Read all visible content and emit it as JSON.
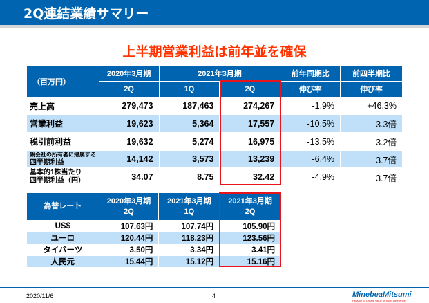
{
  "header": {
    "title": "2Q連結業績サマリー"
  },
  "subtitle": "上半期営業利益は前年並を確保",
  "results_table": {
    "unit": "（百万円）",
    "period_prev": "2020年3月期",
    "period_curr": "2021年3月期",
    "q_prev_2q": "2Q",
    "q_curr_1q": "1Q",
    "q_curr_2q": "2Q",
    "yoy_h1": "前年同期比",
    "yoy_h2": "伸び率",
    "qoq_h1": "前四半期比",
    "qoq_h2": "伸び率",
    "rows": [
      {
        "label": "売上高",
        "label2": "",
        "prev2q": "279,473",
        "q1": "187,463",
        "q2": "274,267",
        "yoy": "-1.9%",
        "qoq": "+46.3%"
      },
      {
        "label": "営業利益",
        "label2": "",
        "prev2q": "19,623",
        "q1": "5,364",
        "q2": "17,557",
        "yoy": "-10.5%",
        "qoq": "3.3倍"
      },
      {
        "label": "税引前利益",
        "label2": "",
        "prev2q": "19,632",
        "q1": "5,274",
        "q2": "16,975",
        "yoy": "-13.5%",
        "qoq": "3.2倍"
      },
      {
        "label": "親会社の所有者に帰属する",
        "label2": "四半期利益",
        "prev2q": "14,142",
        "q1": "3,573",
        "q2": "13,239",
        "yoy": "-6.4%",
        "qoq": "3.7倍"
      },
      {
        "label": "基本的1株当たり",
        "label2": "四半期利益（円）",
        "prev2q": "34.07",
        "q1": "8.75",
        "q2": "32.42",
        "yoy": "-4.9%",
        "qoq": "3.7倍"
      }
    ]
  },
  "fx_table": {
    "header": "為替レート",
    "col1": [
      "2020年3月期",
      "2Q"
    ],
    "col2": [
      "2021年3月期",
      "1Q"
    ],
    "col3": [
      "2021年3月期",
      "2Q"
    ],
    "rows": [
      {
        "label": "US$",
        "v1": "107.63円",
        "v2": "107.74円",
        "v3": "105.90円"
      },
      {
        "label": "ユーロ",
        "v1": "120.44円",
        "v2": "118.23円",
        "v3": "123.56円"
      },
      {
        "label": "タイバーツ",
        "v1": "3.50円",
        "v2": "3.34円",
        "v3": "3.41円"
      },
      {
        "label": "人民元",
        "v1": "15.44円",
        "v2": "15.12円",
        "v3": "15.16円"
      }
    ]
  },
  "footer": {
    "date": "2020/11/6",
    "page": "4",
    "logo": "MinebeaMitsumi",
    "tagline": "Passion to Create Value through Difference"
  },
  "colors": {
    "brand_blue": "#0064b0",
    "highlight_red": "#e8141c",
    "subtitle_red": "#ff3300",
    "row_alt": "#bfe0f8"
  }
}
